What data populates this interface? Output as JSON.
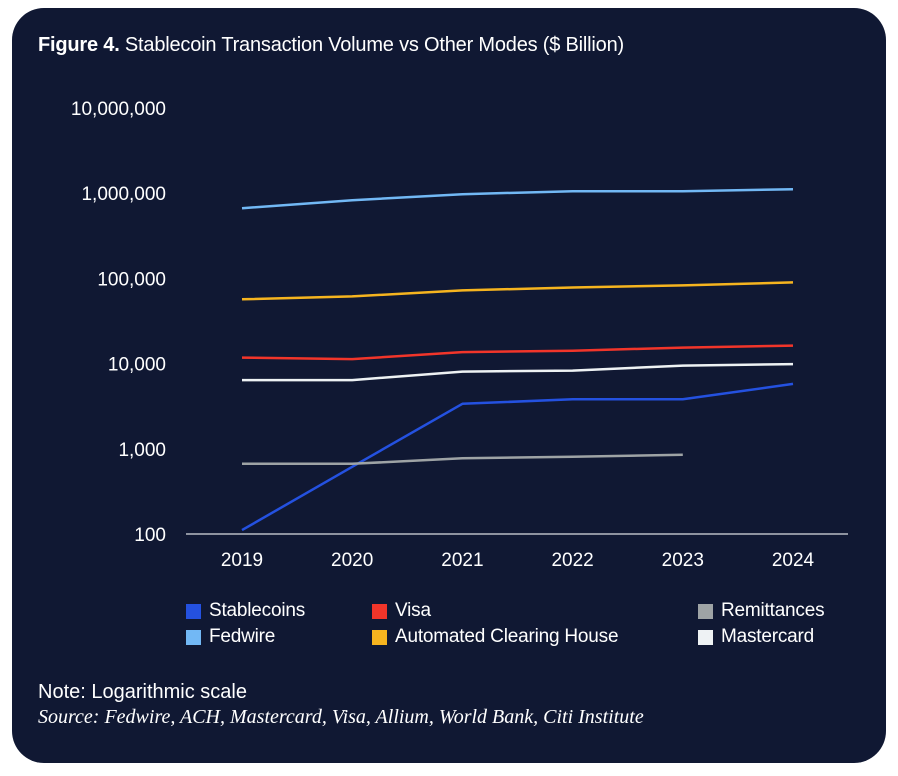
{
  "figure": {
    "label": "Figure 4.",
    "title": "Stablecoin Transaction Volume vs Other Modes ($ Billion)",
    "note": "Note: Logarithmic scale",
    "source": "Source: Fedwire, ACH, Mastercard, Visa, Allium, World Bank, Citi Institute"
  },
  "chart_data": {
    "type": "line",
    "title": "Figure 4. Stablecoin Transaction Volume vs Other Modes ($ Billion)",
    "xlabel": "",
    "ylabel": "",
    "yscale": "log",
    "ylim": [
      100,
      10000000
    ],
    "grid": false,
    "legend_position": "bottom",
    "x": [
      "2019",
      "2020",
      "2021",
      "2022",
      "2023",
      "2024"
    ],
    "yticks": [
      100,
      1000,
      10000,
      100000,
      1000000,
      10000000
    ],
    "ytick_labels": [
      "100",
      "1,000",
      "10,000",
      "100,000",
      "1,000,000",
      "10,000,000"
    ],
    "series": [
      {
        "name": "Fedwire",
        "color": "#72b8f5",
        "values": [
          667000,
          828000,
          973000,
          1055000,
          1055000,
          1115000
        ]
      },
      {
        "name": "Automated Clearing House",
        "color": "#f6b41f",
        "values": [
          56800,
          61500,
          72300,
          78300,
          82800,
          89800
        ]
      },
      {
        "name": "Visa",
        "color": "#f2352a",
        "values": [
          11760,
          11290,
          13640,
          14190,
          15400,
          16260
        ]
      },
      {
        "name": "Mastercard",
        "color": "#eef2f4",
        "values": [
          6410,
          6410,
          8060,
          8280,
          9480,
          9870
        ]
      },
      {
        "name": "Stablecoins",
        "color": "#2451e0",
        "values": [
          111,
          615,
          3375,
          3810,
          3810,
          5780
        ]
      },
      {
        "name": "Remittances",
        "color": "#9ea3a5",
        "values": [
          667,
          667,
          774,
          805,
          851,
          null
        ]
      }
    ],
    "legend": [
      {
        "name": "Stablecoins",
        "color": "#2451e0"
      },
      {
        "name": "Visa",
        "color": "#f2352a"
      },
      {
        "name": "Remittances",
        "color": "#9ea3a5"
      },
      {
        "name": "Fedwire",
        "color": "#72b8f5"
      },
      {
        "name": "Automated Clearing House",
        "color": "#f6b41f"
      },
      {
        "name": "Mastercard",
        "color": "#eef2f4"
      }
    ]
  }
}
